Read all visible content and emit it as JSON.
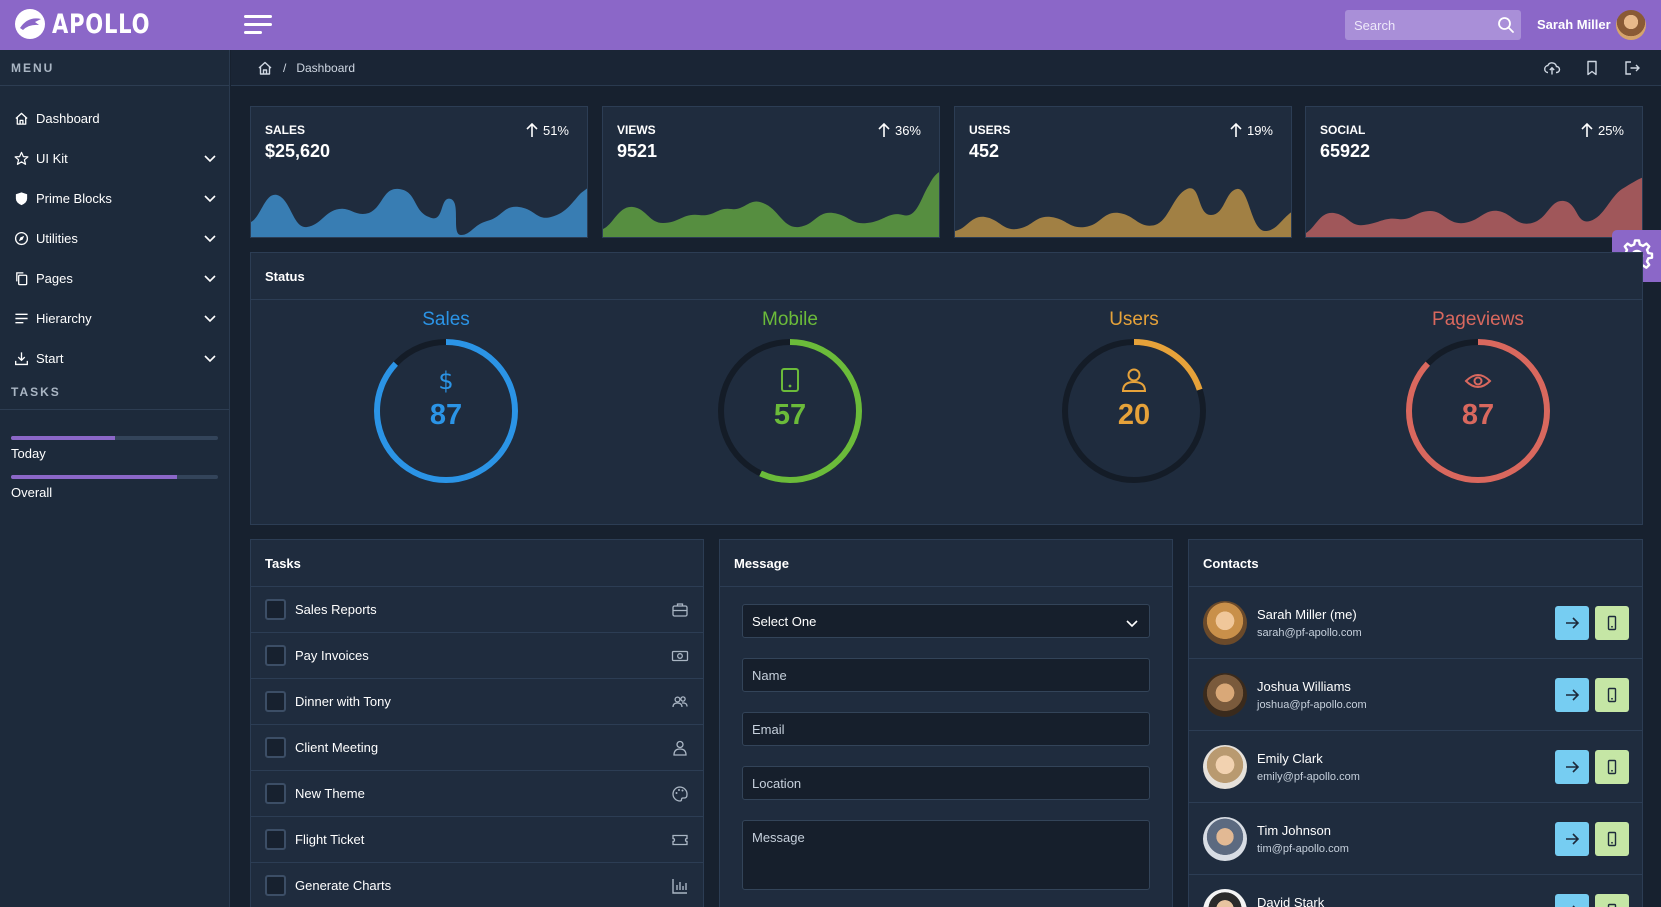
{
  "app": {
    "name": "APOLLO"
  },
  "topbar": {
    "search_placeholder": "Search",
    "user_name": "Sarah Miller"
  },
  "sidebar": {
    "menu_header": "MENU",
    "items": [
      {
        "label": "Dashboard",
        "icon": "home-icon"
      },
      {
        "label": "UI Kit",
        "icon": "star-icon"
      },
      {
        "label": "Prime Blocks",
        "icon": "shield-icon"
      },
      {
        "label": "Utilities",
        "icon": "compass-icon"
      },
      {
        "label": "Pages",
        "icon": "copy-icon"
      },
      {
        "label": "Hierarchy",
        "icon": "align-left-icon"
      },
      {
        "label": "Start",
        "icon": "download-icon"
      }
    ],
    "tasks_header": "TASKS",
    "progress": [
      {
        "label": "Today",
        "value": 0.5
      },
      {
        "label": "Overall",
        "value": 0.8
      }
    ]
  },
  "breadcrumb": {
    "current": "Dashboard"
  },
  "stats": [
    {
      "label": "SALES",
      "value": "$25,620",
      "change": "51%",
      "color": "#3a82b9"
    },
    {
      "label": "VIEWS",
      "value": "9521",
      "change": "36%",
      "color": "#5a9440"
    },
    {
      "label": "USERS",
      "value": "452",
      "change": "19%",
      "color": "#a98545"
    },
    {
      "label": "SOCIAL",
      "value": "65922",
      "change": "25%",
      "color": "#a85a5c"
    }
  ],
  "status": {
    "title": "Status",
    "gauges": [
      {
        "title": "Sales",
        "value": "87",
        "percent": 87,
        "color": "#2b94e6",
        "icon": "dollar-icon"
      },
      {
        "title": "Mobile",
        "value": "57",
        "percent": 57,
        "color": "#6bbb3a",
        "icon": "mobile-icon"
      },
      {
        "title": "Users",
        "value": "20",
        "percent": 20,
        "color": "#e6a23a",
        "icon": "user-icon"
      },
      {
        "title": "Pageviews",
        "value": "87",
        "percent": 87,
        "color": "#d9685e",
        "icon": "eye-icon"
      }
    ]
  },
  "tasks": {
    "title": "Tasks",
    "items": [
      {
        "label": "Sales Reports",
        "icon": "briefcase-icon"
      },
      {
        "label": "Pay Invoices",
        "icon": "money-icon"
      },
      {
        "label": "Dinner with Tony",
        "icon": "users-icon"
      },
      {
        "label": "Client Meeting",
        "icon": "user-icon"
      },
      {
        "label": "New Theme",
        "icon": "palette-icon"
      },
      {
        "label": "Flight Ticket",
        "icon": "ticket-icon"
      },
      {
        "label": "Generate Charts",
        "icon": "chart-bar-icon"
      }
    ]
  },
  "message": {
    "title": "Message",
    "select_value": "Select One",
    "name_placeholder": "Name",
    "email_placeholder": "Email",
    "location_placeholder": "Location",
    "message_placeholder": "Message"
  },
  "contacts": {
    "title": "Contacts",
    "items": [
      {
        "name": "Sarah Miller (me)",
        "email": "sarah@pf-apollo.com"
      },
      {
        "name": "Joshua Williams",
        "email": "joshua@pf-apollo.com"
      },
      {
        "name": "Emily Clark",
        "email": "emily@pf-apollo.com"
      },
      {
        "name": "Tim Johnson",
        "email": "tim@pf-apollo.com"
      },
      {
        "name": "David Stark",
        "email": ""
      }
    ]
  }
}
